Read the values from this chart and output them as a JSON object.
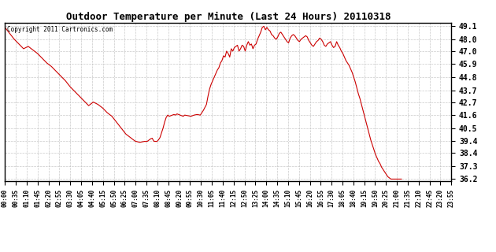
{
  "title": "Outdoor Temperature per Minute (Last 24 Hours) 20110318",
  "copyright_text": "Copyright 2011 Cartronics.com",
  "line_color": "#cc0000",
  "bg_color": "#ffffff",
  "plot_bg_color": "#ffffff",
  "grid_color": "#bbbbbb",
  "yticks": [
    36.2,
    37.3,
    38.4,
    39.4,
    40.5,
    41.6,
    42.7,
    43.7,
    44.8,
    45.9,
    47.0,
    48.0,
    49.1
  ],
  "ylim": [
    36.0,
    49.4
  ],
  "xtick_labels": [
    "00:00",
    "00:35",
    "01:10",
    "01:45",
    "02:20",
    "02:55",
    "03:30",
    "04:05",
    "04:40",
    "05:15",
    "05:50",
    "06:25",
    "07:00",
    "07:35",
    "08:10",
    "08:45",
    "09:20",
    "09:55",
    "10:30",
    "11:05",
    "11:40",
    "12:15",
    "12:50",
    "13:25",
    "14:00",
    "14:35",
    "15:10",
    "15:45",
    "16:20",
    "16:55",
    "17:30",
    "18:05",
    "18:40",
    "19:15",
    "19:50",
    "20:25",
    "21:00",
    "21:35",
    "22:10",
    "22:45",
    "23:20",
    "23:55"
  ],
  "data_points": [
    [
      0,
      49.0
    ],
    [
      15,
      48.5
    ],
    [
      30,
      48.0
    ],
    [
      45,
      47.6
    ],
    [
      60,
      47.2
    ],
    [
      75,
      47.4
    ],
    [
      90,
      47.1
    ],
    [
      105,
      46.8
    ],
    [
      120,
      46.4
    ],
    [
      135,
      46.0
    ],
    [
      150,
      45.7
    ],
    [
      165,
      45.3
    ],
    [
      180,
      44.9
    ],
    [
      195,
      44.5
    ],
    [
      210,
      44.0
    ],
    [
      225,
      43.6
    ],
    [
      240,
      43.2
    ],
    [
      255,
      42.8
    ],
    [
      270,
      42.4
    ],
    [
      285,
      42.7
    ],
    [
      300,
      42.5
    ],
    [
      315,
      42.2
    ],
    [
      330,
      41.8
    ],
    [
      345,
      41.5
    ],
    [
      360,
      41.0
    ],
    [
      375,
      40.5
    ],
    [
      390,
      40.0
    ],
    [
      405,
      39.7
    ],
    [
      420,
      39.4
    ],
    [
      435,
      39.3
    ],
    [
      445,
      39.35
    ],
    [
      450,
      39.38
    ],
    [
      455,
      39.37
    ],
    [
      460,
      39.4
    ],
    [
      465,
      39.5
    ],
    [
      470,
      39.6
    ],
    [
      475,
      39.65
    ],
    [
      480,
      39.4
    ],
    [
      485,
      39.38
    ],
    [
      490,
      39.37
    ],
    [
      495,
      39.5
    ],
    [
      500,
      39.7
    ],
    [
      505,
      40.1
    ],
    [
      510,
      40.5
    ],
    [
      515,
      41.0
    ],
    [
      520,
      41.4
    ],
    [
      525,
      41.6
    ],
    [
      530,
      41.5
    ],
    [
      535,
      41.55
    ],
    [
      540,
      41.6
    ],
    [
      545,
      41.65
    ],
    [
      550,
      41.6
    ],
    [
      555,
      41.7
    ],
    [
      560,
      41.65
    ],
    [
      565,
      41.6
    ],
    [
      570,
      41.55
    ],
    [
      575,
      41.5
    ],
    [
      580,
      41.6
    ],
    [
      590,
      41.55
    ],
    [
      600,
      41.5
    ],
    [
      610,
      41.6
    ],
    [
      620,
      41.65
    ],
    [
      630,
      41.6
    ],
    [
      640,
      42.0
    ],
    [
      650,
      42.5
    ],
    [
      655,
      43.2
    ],
    [
      660,
      43.8
    ],
    [
      665,
      44.2
    ],
    [
      670,
      44.5
    ],
    [
      675,
      44.8
    ],
    [
      680,
      45.1
    ],
    [
      685,
      45.4
    ],
    [
      690,
      45.6
    ],
    [
      695,
      46.0
    ],
    [
      700,
      46.2
    ],
    [
      705,
      46.6
    ],
    [
      710,
      46.5
    ],
    [
      715,
      47.0
    ],
    [
      720,
      46.8
    ],
    [
      725,
      46.5
    ],
    [
      730,
      47.2
    ],
    [
      735,
      47.0
    ],
    [
      740,
      47.3
    ],
    [
      745,
      47.4
    ],
    [
      750,
      47.5
    ],
    [
      755,
      47.0
    ],
    [
      760,
      47.2
    ],
    [
      765,
      47.5
    ],
    [
      770,
      47.4
    ],
    [
      775,
      47.0
    ],
    [
      780,
      47.5
    ],
    [
      785,
      47.8
    ],
    [
      790,
      47.5
    ],
    [
      795,
      47.6
    ],
    [
      800,
      47.2
    ],
    [
      805,
      47.5
    ],
    [
      810,
      47.6
    ],
    [
      815,
      48.0
    ],
    [
      820,
      48.3
    ],
    [
      825,
      48.6
    ],
    [
      830,
      49.0
    ],
    [
      835,
      49.1
    ],
    [
      840,
      48.8
    ],
    [
      845,
      49.0
    ],
    [
      850,
      48.8
    ],
    [
      855,
      48.7
    ],
    [
      860,
      48.4
    ],
    [
      865,
      48.3
    ],
    [
      870,
      48.1
    ],
    [
      875,
      48.0
    ],
    [
      880,
      48.2
    ],
    [
      885,
      48.5
    ],
    [
      890,
      48.6
    ],
    [
      895,
      48.4
    ],
    [
      900,
      48.2
    ],
    [
      905,
      48.0
    ],
    [
      910,
      47.8
    ],
    [
      915,
      47.7
    ],
    [
      920,
      48.1
    ],
    [
      925,
      48.3
    ],
    [
      930,
      48.4
    ],
    [
      935,
      48.3
    ],
    [
      940,
      48.1
    ],
    [
      945,
      47.9
    ],
    [
      950,
      47.8
    ],
    [
      955,
      48.0
    ],
    [
      960,
      48.1
    ],
    [
      965,
      48.2
    ],
    [
      970,
      48.3
    ],
    [
      975,
      48.2
    ],
    [
      980,
      47.9
    ],
    [
      985,
      47.7
    ],
    [
      990,
      47.5
    ],
    [
      995,
      47.4
    ],
    [
      1000,
      47.6
    ],
    [
      1005,
      47.8
    ],
    [
      1010,
      47.9
    ],
    [
      1015,
      48.1
    ],
    [
      1020,
      48.0
    ],
    [
      1025,
      47.8
    ],
    [
      1030,
      47.5
    ],
    [
      1035,
      47.4
    ],
    [
      1040,
      47.6
    ],
    [
      1045,
      47.7
    ],
    [
      1050,
      47.8
    ],
    [
      1055,
      47.5
    ],
    [
      1060,
      47.3
    ],
    [
      1065,
      47.4
    ],
    [
      1070,
      47.8
    ],
    [
      1075,
      47.5
    ],
    [
      1080,
      47.3
    ],
    [
      1085,
      47.0
    ],
    [
      1090,
      46.8
    ],
    [
      1095,
      46.5
    ],
    [
      1100,
      46.2
    ],
    [
      1105,
      46.0
    ],
    [
      1110,
      45.8
    ],
    [
      1115,
      45.5
    ],
    [
      1120,
      45.2
    ],
    [
      1125,
      44.8
    ],
    [
      1130,
      44.4
    ],
    [
      1135,
      43.9
    ],
    [
      1140,
      43.4
    ],
    [
      1145,
      43.0
    ],
    [
      1150,
      42.5
    ],
    [
      1155,
      42.0
    ],
    [
      1160,
      41.5
    ],
    [
      1165,
      41.0
    ],
    [
      1170,
      40.5
    ],
    [
      1175,
      40.0
    ],
    [
      1180,
      39.5
    ],
    [
      1185,
      39.1
    ],
    [
      1190,
      38.7
    ],
    [
      1195,
      38.3
    ],
    [
      1200,
      38.0
    ],
    [
      1205,
      37.7
    ],
    [
      1210,
      37.5
    ],
    [
      1215,
      37.2
    ],
    [
      1220,
      37.0
    ],
    [
      1225,
      36.8
    ],
    [
      1230,
      36.6
    ],
    [
      1235,
      36.4
    ],
    [
      1240,
      36.3
    ],
    [
      1245,
      36.2
    ],
    [
      1250,
      36.2
    ],
    [
      1255,
      36.2
    ],
    [
      1260,
      36.2
    ],
    [
      1265,
      36.2
    ],
    [
      1270,
      36.2
    ],
    [
      1275,
      36.2
    ],
    [
      1279,
      36.2
    ]
  ]
}
